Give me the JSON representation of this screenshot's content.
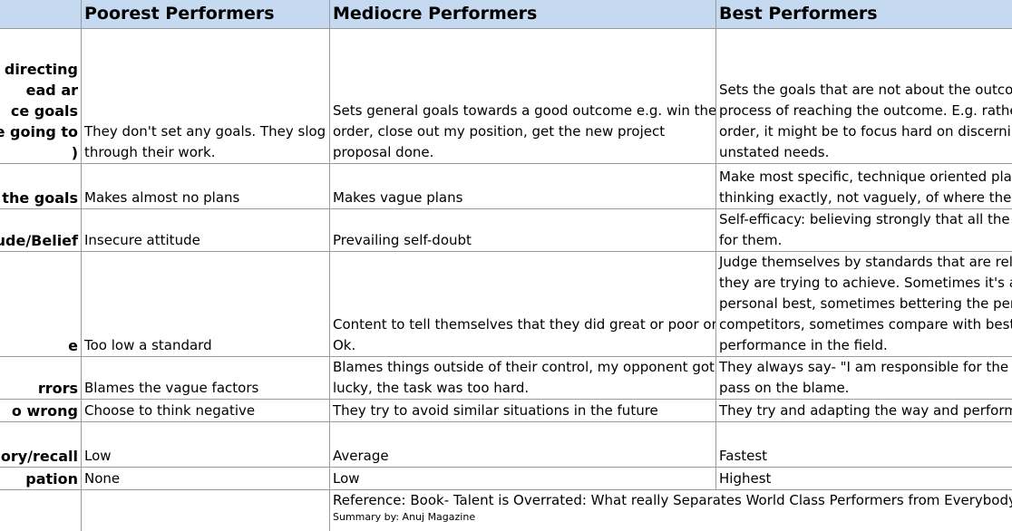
{
  "headers": {
    "attribute": "",
    "poorest": "Poorest Performers",
    "mediocre": "Mediocre Performers",
    "best": "Best Performers"
  },
  "rows": [
    {
      "attribute": [
        "e directing",
        "ead ar",
        "ce goals",
        "e going to",
        ")"
      ],
      "poorest": [
        "They don't set any goals. They slog",
        "through their work."
      ],
      "mediocre": [
        "Sets general goals towards a good outcome e.g. win the",
        "order, close out my position, get the new project",
        "proposal done."
      ],
      "best": [
        "Sets the goals that are not about the outcom",
        "process of reaching the outcome. E.g. rather",
        "order, it might be to focus hard on discerning",
        "unstated needs."
      ]
    },
    {
      "attribute": [
        "n the goals"
      ],
      "poorest": [
        "Makes almost no plans"
      ],
      "mediocre": [
        "Makes vague plans"
      ],
      "best": [
        "Make most specific, technique oriented plans",
        "thinking exactly, not vaguely, of where they a"
      ]
    },
    {
      "attribute": [
        "ude/Belief"
      ],
      "poorest": [
        "Insecure attitude"
      ],
      "mediocre": [
        "Prevailing self-doubt"
      ],
      "best": [
        "Self-efficacy: believing strongly that all the w",
        "for them."
      ]
    },
    {
      "attribute": [
        "e"
      ],
      "poorest": [
        "Too low a standard"
      ],
      "mediocre": [
        "Content to tell themselves that they did great or poor or",
        "Ok."
      ],
      "best": [
        "Judge themselves by standards that are relev",
        "they are trying to achieve. Sometimes it's ach",
        "personal best, sometimes bettering the perfo",
        "competitors, sometimes compare with best k",
        "performance in the field."
      ]
    },
    {
      "attribute": [
        "rrors"
      ],
      "poorest": [
        "Blames the vague factors"
      ],
      "mediocre": [
        "Blames things outside of their control, my opponent got",
        "lucky, the task was too hard."
      ],
      "best": [
        "They always say- \"I am responsible for the er",
        "pass on the blame."
      ]
    },
    {
      "attribute": [
        "o wrong"
      ],
      "poorest": [
        "Choose to think negative"
      ],
      "mediocre": [
        "They try to avoid similar situations in the future"
      ],
      "best": [
        "They try and adapting the way and perform i"
      ]
    },
    {
      "attribute": [
        "hory/recall"
      ],
      "poorest": [
        "Low"
      ],
      "mediocre": [
        "Average"
      ],
      "best": [
        "Fastest"
      ]
    },
    {
      "attribute": [
        "pation"
      ],
      "poorest": [
        "None"
      ],
      "mediocre": [
        "Low"
      ],
      "best": [
        "Highest"
      ]
    }
  ],
  "reference": {
    "text": "Reference: Book- Talent is Overrated: What really Separates World Class Performers from Everybody E",
    "summary": "Summary by: Anuj Magazine"
  }
}
